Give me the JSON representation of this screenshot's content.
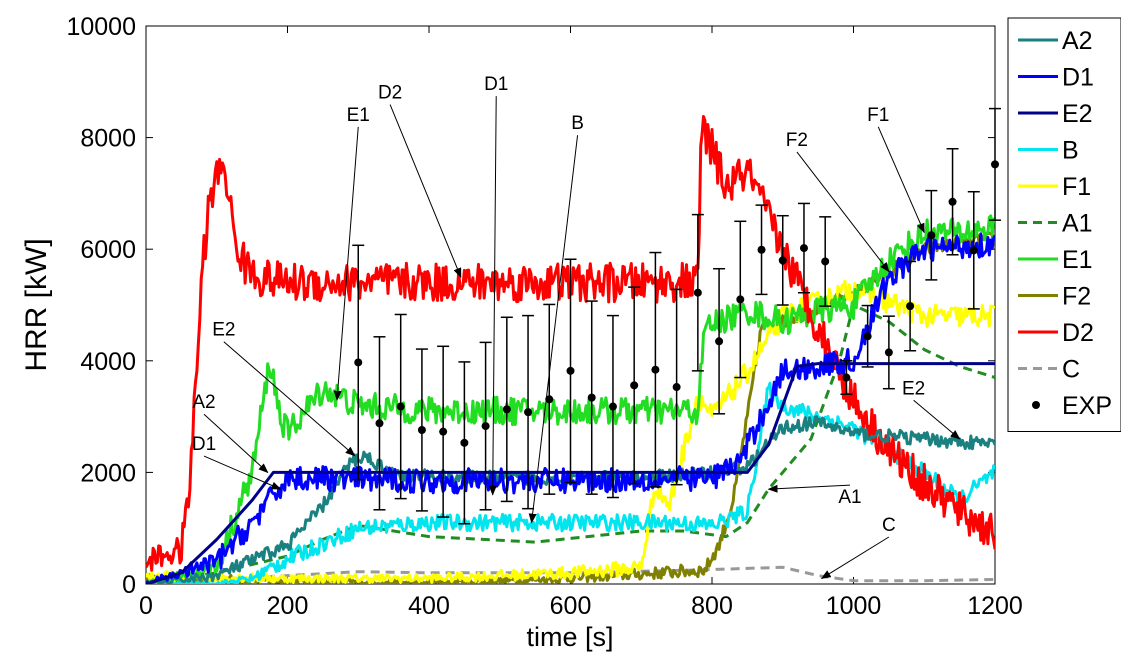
{
  "chart_data": {
    "type": "line",
    "xlabel": "time [s]",
    "ylabel": "HRR [kW]",
    "xlim": [
      0,
      1200
    ],
    "ylim": [
      0,
      10000
    ],
    "x_ticks": [
      0,
      200,
      400,
      600,
      800,
      1000,
      1200
    ],
    "y_ticks": [
      0,
      2000,
      4000,
      6000,
      8000,
      10000
    ],
    "x_tick_labels": [
      "0",
      "200",
      "400",
      "600",
      "800",
      "1000",
      "1200"
    ],
    "y_tick_labels": [
      "0",
      "2000",
      "4000",
      "6000",
      "8000",
      "10000"
    ],
    "grid": false,
    "legend_position": "right-outside",
    "series": [
      {
        "name": "A2",
        "color": "#1a8080",
        "dash": "solid",
        "noise": 120,
        "x": [
          0,
          100,
          200,
          250,
          290,
          310,
          350,
          500,
          700,
          800,
          850,
          900,
          950,
          1000,
          1100,
          1200
        ],
        "y": [
          0,
          150,
          700,
          1400,
          2200,
          2300,
          1950,
          1900,
          1900,
          2000,
          2100,
          2800,
          2900,
          2700,
          2600,
          2500
        ]
      },
      {
        "name": "D1",
        "color": "#0000ff",
        "dash": "solid",
        "noise": 220,
        "x": [
          0,
          100,
          150,
          200,
          400,
          600,
          800,
          840,
          870,
          900,
          1000,
          1050,
          1100,
          1200
        ],
        "y": [
          0,
          400,
          1100,
          1900,
          1850,
          1850,
          1900,
          2200,
          3000,
          3800,
          4000,
          5500,
          6000,
          6100
        ]
      },
      {
        "name": "E2",
        "color": "#00008b",
        "dash": "solid",
        "noise": 0,
        "x": [
          0,
          50,
          100,
          150,
          180,
          700,
          850,
          880,
          920,
          950,
          1200
        ],
        "y": [
          0,
          200,
          800,
          1500,
          2000,
          2000,
          2000,
          2500,
          3900,
          3950,
          3950
        ]
      },
      {
        "name": "B",
        "color": "#00e5ee",
        "dash": "solid",
        "noise": 150,
        "x": [
          0,
          100,
          150,
          200,
          300,
          400,
          600,
          750,
          800,
          850,
          880,
          900,
          1000,
          1100,
          1150,
          1200
        ],
        "y": [
          0,
          0,
          100,
          450,
          1000,
          1100,
          1100,
          1100,
          1050,
          1300,
          3500,
          3200,
          2800,
          2000,
          1500,
          2000
        ]
      },
      {
        "name": "F1",
        "color": "#ffff00",
        "dash": "solid",
        "noise": 200,
        "x": [
          0,
          100,
          200,
          400,
          600,
          700,
          720,
          740,
          780,
          800,
          850,
          900,
          1000,
          1100,
          1200
        ],
        "y": [
          150,
          120,
          100,
          100,
          200,
          300,
          1800,
          1400,
          3400,
          3000,
          3800,
          4800,
          5300,
          4800,
          4800
        ]
      },
      {
        "name": "A1",
        "color": "#228b22",
        "dash": "dashed",
        "noise": 0,
        "x": [
          0,
          100,
          200,
          250,
          300,
          400,
          550,
          700,
          760,
          820,
          850,
          880,
          940,
          980,
          1000,
          1050,
          1100,
          1150,
          1200
        ],
        "y": [
          0,
          200,
          500,
          800,
          1050,
          850,
          750,
          950,
          950,
          850,
          1100,
          1700,
          2600,
          4000,
          5000,
          4700,
          4200,
          3900,
          3700
        ]
      },
      {
        "name": "E1",
        "color": "#22dd22",
        "dash": "solid",
        "noise": 250,
        "x": [
          0,
          100,
          150,
          175,
          190,
          200,
          250,
          300,
          400,
          600,
          780,
          790,
          850,
          900,
          950,
          1000,
          1050,
          1100,
          1150,
          1200
        ],
        "y": [
          0,
          300,
          2000,
          4000,
          3000,
          2700,
          3500,
          3200,
          3100,
          3100,
          3100,
          4600,
          4900,
          4700,
          4900,
          5000,
          5800,
          6300,
          6300,
          6400
        ]
      },
      {
        "name": "F2",
        "color": "#808000",
        "dash": "solid",
        "noise": 120,
        "x": [
          0,
          100,
          200,
          400,
          600,
          790,
          810,
          830,
          850,
          870,
          900,
          1000,
          1050,
          1100,
          1200
        ],
        "y": [
          100,
          100,
          50,
          20,
          100,
          250,
          700,
          1500,
          3000,
          4600,
          4700,
          5200,
          5600,
          6000,
          6200
        ]
      },
      {
        "name": "D2",
        "color": "#ff0000",
        "dash": "solid",
        "noise": 350,
        "x": [
          0,
          20,
          50,
          60,
          70,
          80,
          90,
          110,
          125,
          140,
          160,
          200,
          400,
          600,
          780,
          785,
          800,
          820,
          850,
          900,
          950,
          1000,
          1050,
          1100,
          1150,
          1200
        ],
        "y": [
          400,
          500,
          600,
          1500,
          3500,
          5700,
          6900,
          7600,
          6200,
          5700,
          5500,
          5400,
          5400,
          5400,
          5400,
          8200,
          7800,
          7100,
          7400,
          6000,
          4600,
          3300,
          2400,
          1800,
          1300,
          900
        ]
      },
      {
        "name": "C",
        "color": "#999999",
        "dash": "dashed",
        "noise": 0,
        "x": [
          0,
          100,
          200,
          300,
          400,
          600,
          780,
          850,
          900,
          950,
          1000,
          1100,
          1200
        ],
        "y": [
          0,
          80,
          150,
          220,
          200,
          200,
          250,
          280,
          300,
          150,
          60,
          60,
          80
        ]
      },
      {
        "name": "EXP",
        "color": "#000000",
        "markers": true,
        "x": [
          300,
          330,
          360,
          390,
          420,
          450,
          480,
          510,
          540,
          570,
          600,
          630,
          660,
          690,
          720,
          750,
          780,
          810,
          840,
          870,
          900,
          930,
          960,
          990,
          1020,
          1050,
          1080,
          1110,
          1140,
          1170,
          1200
        ],
        "y": [
          3970,
          2880,
          3180,
          2760,
          2730,
          2530,
          2830,
          3130,
          3080,
          3310,
          3820,
          3340,
          3180,
          3560,
          3840,
          3530,
          5220,
          4350,
          5100,
          5990,
          5800,
          6020,
          5780,
          3700,
          4440,
          4150,
          4980,
          6250,
          6850,
          5980,
          7520
        ],
        "err": [
          2100,
          1550,
          1650,
          1450,
          1530,
          1450,
          1500,
          1650,
          1730,
          1700,
          2000,
          1730,
          1630,
          1760,
          2100,
          1750,
          1400,
          1300,
          1400,
          800,
          800,
          800,
          800,
          300,
          550,
          650,
          800,
          800,
          950,
          1050,
          1000
        ]
      }
    ],
    "annotations": [
      {
        "label": "E1",
        "text_x": 300,
        "text_y": 8300,
        "arrow_x": 270,
        "arrow_y": 3300
      },
      {
        "label": "D2",
        "text_x": 345,
        "text_y": 8700,
        "arrow_x": 445,
        "arrow_y": 5500
      },
      {
        "label": "D1",
        "text_x": 495,
        "text_y": 8850,
        "arrow_x": 490,
        "arrow_y": 1600
      },
      {
        "label": "B",
        "text_x": 610,
        "text_y": 8150,
        "arrow_x": 545,
        "arrow_y": 1100
      },
      {
        "label": "E2",
        "text_x": 110,
        "text_y": 4450,
        "arrow_x": 295,
        "arrow_y": 2300
      },
      {
        "label": "A2",
        "text_x": 82,
        "text_y": 3150,
        "arrow_x": 172,
        "arrow_y": 2000
      },
      {
        "label": "D1",
        "text_x": 82,
        "text_y": 2400,
        "arrow_x": 190,
        "arrow_y": 1700
      },
      {
        "label": "F2",
        "text_x": 920,
        "text_y": 7850,
        "arrow_x": 1050,
        "arrow_y": 5600
      },
      {
        "label": "F1",
        "text_x": 1035,
        "text_y": 8300,
        "arrow_x": 1100,
        "arrow_y": 6300
      },
      {
        "label": "E2",
        "text_x": 1085,
        "text_y": 3400,
        "arrow_x": 1150,
        "arrow_y": 2600
      },
      {
        "label": "A1",
        "text_x": 995,
        "text_y": 1450,
        "arrow_x": 880,
        "arrow_y": 1700
      },
      {
        "label": "C",
        "text_x": 1050,
        "text_y": 950,
        "arrow_x": 955,
        "arrow_y": 100
      }
    ]
  },
  "labels": {
    "xlabel": "time [s]",
    "ylabel": "HRR [kW]"
  }
}
